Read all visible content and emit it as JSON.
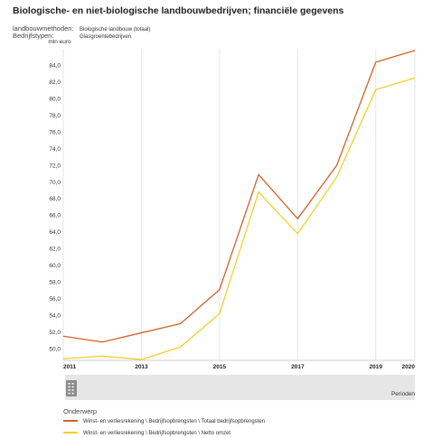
{
  "title": "Biologische- en niet-biologische landbouwbedrijven; financiële gegevens",
  "meta": [
    {
      "key": "landbouwmethoden:",
      "value": "Biologische landbouw (totaal)"
    },
    {
      "key": "Bedrijfstypen:",
      "value": "Glasgroentebedrijven"
    }
  ],
  "colors": {
    "series1": "#d2622a",
    "series2": "#f2d02a",
    "grid": "#e6e6e6",
    "slider": "#e6e6e6"
  },
  "slider_label": "Perioden",
  "slider_icon": "grip-handle-icon",
  "legend_title": "Onderwerp",
  "chart_data": {
    "type": "line",
    "ylabel": "mln euro",
    "xlabel": "",
    "x": [
      2011,
      2012,
      2013,
      2014,
      2015,
      2016,
      2017,
      2018,
      2019,
      2020
    ],
    "x_ticks": [
      "2011",
      "2013",
      "2015",
      "2017",
      "2019",
      "2020"
    ],
    "ylim": [
      48.6,
      86.0
    ],
    "y_ticks": [
      "50,0",
      "52,0",
      "54,0",
      "56,0",
      "58,0",
      "60,0",
      "62,0",
      "64,0",
      "66,0",
      "68,0",
      "70,0",
      "72,0",
      "74,0",
      "76,0",
      "78,0",
      "80,0",
      "82,0",
      "84,0"
    ],
    "grid": "vertical",
    "series": [
      {
        "name": "Winst- en verliesrekening \\ Bedrijfsopbrengsten \\ Totaal bedrijfsopbrengsten",
        "values": [
          51.5,
          50.8,
          51.9,
          53.0,
          57.1,
          70.9,
          65.6,
          72.0,
          84.4,
          85.8
        ]
      },
      {
        "name": "Winst- en verliesrekening \\ Bedrijfsopbrengsten \\ Netto omzet",
        "values": [
          48.8,
          49.1,
          48.7,
          50.2,
          54.2,
          68.8,
          63.8,
          70.6,
          81.1,
          82.5
        ]
      }
    ]
  }
}
